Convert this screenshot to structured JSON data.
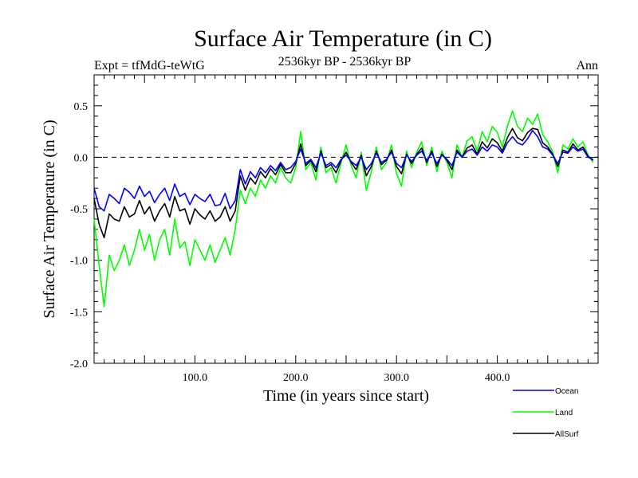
{
  "chart_data": {
    "type": "line",
    "title": "Surface Air Temperature (in C)",
    "subtitle": "2536kyr BP - 2536kyr BP",
    "left_label": "Expt = tfMdG-teWtG",
    "right_label": "Ann",
    "xlabel": "Time (in years since start)",
    "ylabel": "Surface Air Temperature (in C)",
    "xlim": [
      0,
      500
    ],
    "ylim": [
      -2.0,
      0.8
    ],
    "x_ticks": [
      100,
      200,
      300,
      400
    ],
    "x_tick_labels": [
      "100.0",
      "200.0",
      "300.0",
      "400.0"
    ],
    "y_ticks": [
      -2.0,
      -1.5,
      -1.0,
      -0.5,
      0.0,
      0.5
    ],
    "y_tick_labels": [
      "-2.0",
      "-1.5",
      "-1.0",
      "-0.5",
      "0.0",
      "0.5"
    ],
    "reference_line": 0.0,
    "x_start": 0,
    "x_step": 5,
    "series": [
      {
        "name": "Ocean",
        "color": "#0000ff",
        "values": [
          -0.3,
          -0.48,
          -0.52,
          -0.36,
          -0.4,
          -0.45,
          -0.3,
          -0.34,
          -0.4,
          -0.28,
          -0.38,
          -0.33,
          -0.44,
          -0.36,
          -0.3,
          -0.42,
          -0.26,
          -0.38,
          -0.35,
          -0.46,
          -0.36,
          -0.4,
          -0.43,
          -0.36,
          -0.47,
          -0.46,
          -0.35,
          -0.5,
          -0.42,
          -0.12,
          -0.26,
          -0.14,
          -0.2,
          -0.1,
          -0.15,
          -0.08,
          -0.13,
          -0.05,
          -0.12,
          -0.1,
          -0.04,
          0.08,
          -0.06,
          -0.02,
          -0.1,
          0.04,
          -0.08,
          -0.05,
          -0.1,
          -0.02,
          0.02,
          -0.04,
          -0.08,
          0.0,
          -0.12,
          -0.06,
          0.04,
          -0.05,
          -0.02,
          0.05,
          -0.06,
          -0.1,
          0.02,
          -0.04,
          0.02,
          0.06,
          -0.03,
          0.04,
          -0.06,
          0.02,
          -0.02,
          -0.08,
          0.05,
          0.0,
          0.06,
          0.08,
          0.02,
          0.1,
          0.06,
          0.12,
          0.1,
          0.04,
          0.14,
          0.2,
          0.14,
          0.12,
          0.18,
          0.26,
          0.2,
          0.1,
          0.08,
          0.02,
          -0.06,
          0.05,
          0.04,
          0.1,
          0.06,
          0.08,
          0.0,
          -0.02
        ]
      },
      {
        "name": "Land",
        "color": "#00ff00",
        "values": [
          -0.6,
          -1.05,
          -1.45,
          -0.95,
          -1.1,
          -1.0,
          -0.85,
          -1.05,
          -0.9,
          -0.7,
          -0.9,
          -0.75,
          -1.0,
          -0.8,
          -0.7,
          -0.95,
          -0.6,
          -0.88,
          -0.82,
          -1.05,
          -0.8,
          -0.9,
          -1.0,
          -0.85,
          -1.02,
          -0.9,
          -0.78,
          -0.95,
          -0.7,
          -0.32,
          -0.45,
          -0.3,
          -0.38,
          -0.22,
          -0.3,
          -0.18,
          -0.25,
          -0.1,
          -0.2,
          -0.25,
          -0.1,
          0.25,
          -0.12,
          -0.05,
          -0.22,
          0.1,
          -0.15,
          -0.1,
          -0.25,
          -0.05,
          0.12,
          -0.08,
          -0.2,
          0.05,
          -0.32,
          -0.14,
          0.1,
          -0.12,
          -0.05,
          0.12,
          -0.16,
          -0.28,
          0.06,
          -0.1,
          0.05,
          0.15,
          -0.08,
          0.1,
          -0.14,
          0.06,
          -0.05,
          -0.2,
          0.12,
          0.0,
          0.16,
          0.2,
          0.06,
          0.25,
          0.15,
          0.3,
          0.24,
          0.1,
          0.3,
          0.45,
          0.3,
          0.25,
          0.38,
          0.32,
          0.42,
          0.22,
          0.15,
          0.05,
          -0.15,
          0.12,
          0.08,
          0.18,
          0.1,
          0.15,
          0.02,
          -0.05
        ]
      },
      {
        "name": "AllSurf",
        "color": "#000000",
        "values": [
          -0.4,
          -0.65,
          -0.78,
          -0.55,
          -0.6,
          -0.62,
          -0.48,
          -0.58,
          -0.55,
          -0.42,
          -0.55,
          -0.48,
          -0.62,
          -0.52,
          -0.45,
          -0.58,
          -0.38,
          -0.52,
          -0.5,
          -0.65,
          -0.5,
          -0.56,
          -0.6,
          -0.52,
          -0.62,
          -0.58,
          -0.48,
          -0.62,
          -0.52,
          -0.18,
          -0.32,
          -0.2,
          -0.26,
          -0.14,
          -0.2,
          -0.11,
          -0.17,
          -0.07,
          -0.15,
          -0.15,
          -0.06,
          0.13,
          -0.08,
          -0.03,
          -0.14,
          0.06,
          -0.1,
          -0.07,
          -0.15,
          -0.03,
          0.05,
          -0.05,
          -0.12,
          0.02,
          -0.18,
          -0.09,
          0.06,
          -0.07,
          -0.03,
          0.07,
          -0.09,
          -0.16,
          0.03,
          -0.06,
          0.03,
          0.09,
          -0.05,
          0.06,
          -0.09,
          0.03,
          -0.03,
          -0.12,
          0.07,
          0.0,
          0.09,
          0.12,
          0.03,
          0.15,
          0.09,
          0.18,
          0.14,
          0.06,
          0.19,
          0.28,
          0.19,
          0.16,
          0.24,
          0.28,
          0.27,
          0.14,
          0.1,
          0.03,
          -0.09,
          0.07,
          0.05,
          0.13,
          0.07,
          0.1,
          0.01,
          -0.03
        ]
      }
    ],
    "legend": [
      "Ocean",
      "Land",
      "AllSurf"
    ],
    "legend_position": "bottom-right"
  }
}
